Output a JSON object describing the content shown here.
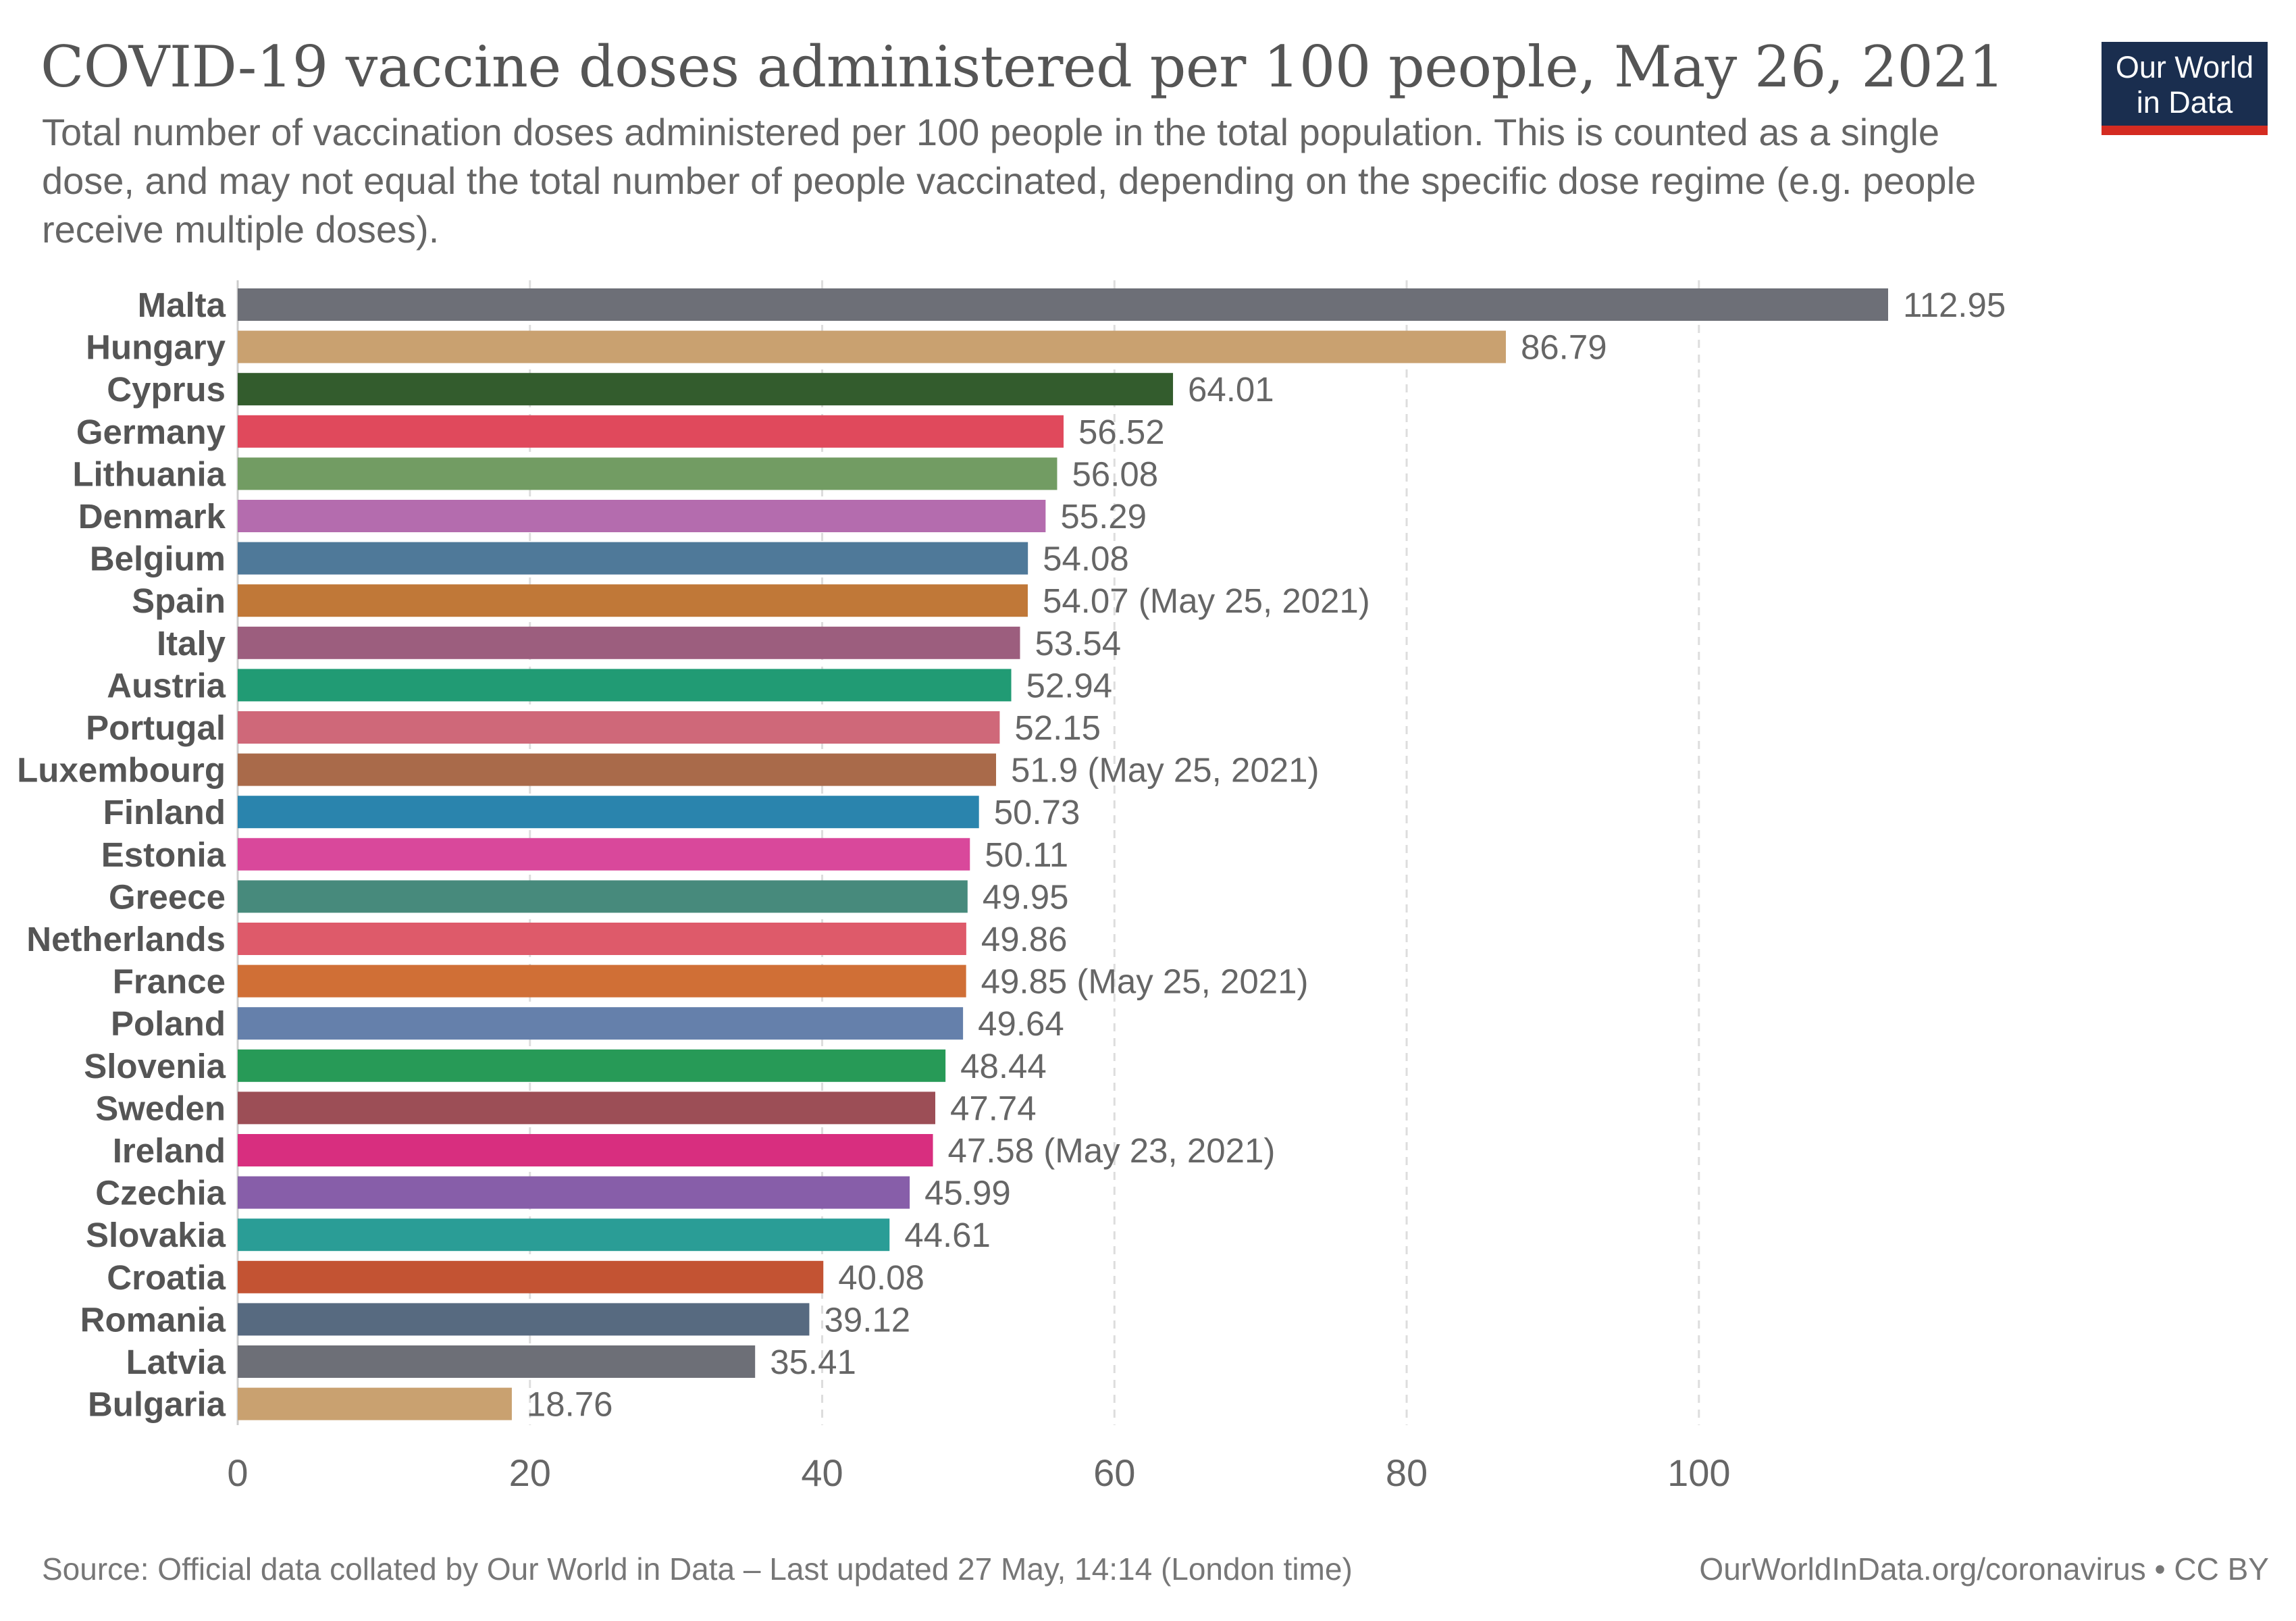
{
  "title": "COVID-19 vaccine doses administered per 100 people, May 26, 2021",
  "subtitle": "Total number of vaccination doses administered per 100 people in the total population. This is counted as a single dose, and may not equal the total number of people vaccinated, depending on the specific dose regime (e.g. people receive multiple doses).",
  "logo": {
    "line1": "Our World",
    "line2": "in Data"
  },
  "footer": {
    "source": "Source: Official data collated by Our World in Data – Last updated 27 May, 14:14 (London time)",
    "link": "OurWorldInData.org/coronavirus • CC BY"
  },
  "colors": {
    "logo_bg": "#1a2e4f",
    "logo_accent": "#d42b21",
    "grid": "#dddddd"
  },
  "chart_data": {
    "type": "bar",
    "orientation": "horizontal",
    "xlim": [
      0,
      112.95
    ],
    "xticks": [
      0,
      20,
      40,
      60,
      80,
      100
    ],
    "grid": true,
    "categories": [
      "Malta",
      "Hungary",
      "Cyprus",
      "Germany",
      "Lithuania",
      "Denmark",
      "Belgium",
      "Spain",
      "Italy",
      "Austria",
      "Portugal",
      "Luxembourg",
      "Finland",
      "Estonia",
      "Greece",
      "Netherlands",
      "France",
      "Poland",
      "Slovenia",
      "Sweden",
      "Ireland",
      "Czechia",
      "Slovakia",
      "Croatia",
      "Romania",
      "Latvia",
      "Bulgaria"
    ],
    "values": [
      112.95,
      86.79,
      64.01,
      56.52,
      56.08,
      55.29,
      54.08,
      54.07,
      53.54,
      52.94,
      52.15,
      51.9,
      50.73,
      50.11,
      49.95,
      49.86,
      49.85,
      49.64,
      48.44,
      47.74,
      47.58,
      45.99,
      44.61,
      40.08,
      39.12,
      35.41,
      18.76
    ],
    "labels": [
      "112.95",
      "86.79",
      "64.01",
      "56.52",
      "56.08",
      "55.29",
      "54.08",
      "54.07 (May 25, 2021)",
      "53.54",
      "52.94",
      "52.15",
      "51.9 (May 25, 2021)",
      "50.73",
      "50.11",
      "49.95",
      "49.86",
      "49.85 (May 25, 2021)",
      "49.64",
      "48.44",
      "47.74",
      "47.58 (May 23, 2021)",
      "45.99",
      "44.61",
      "40.08",
      "39.12",
      "35.41",
      "18.76"
    ],
    "colors": [
      "#6d6f77",
      "#c9a170",
      "#335c2d",
      "#e0495c",
      "#729c63",
      "#b46cae",
      "#4f7999",
      "#c07838",
      "#9c5e7e",
      "#219b74",
      "#cf6879",
      "#a96a4a",
      "#2a84ad",
      "#d9489b",
      "#478a7c",
      "#de5a6a",
      "#d06f36",
      "#6580ab",
      "#279a57",
      "#9c4e56",
      "#d82e7f",
      "#875ea9",
      "#2a9d96",
      "#c35333",
      "#576a80",
      "#6d6f77",
      "#c9a170"
    ]
  }
}
